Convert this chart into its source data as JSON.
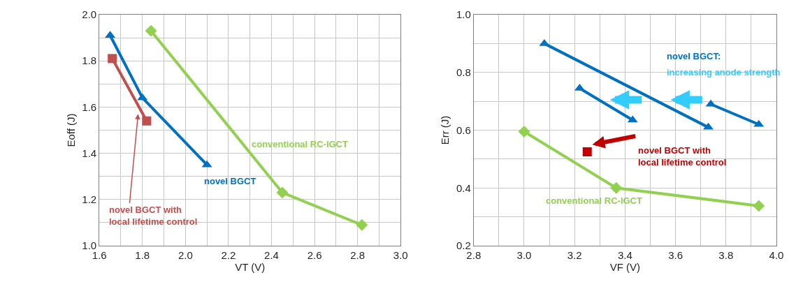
{
  "chart_data": [
    {
      "type": "line",
      "xlabel": "VT (V)",
      "ylabel": "Eoff (J)",
      "xlim": [
        1.6,
        3.0
      ],
      "ylim": [
        1.0,
        2.0
      ],
      "xticks": [
        1.6,
        {
          "value": 1.7,
          "label": null
        },
        1.8,
        {
          "value": 1.9,
          "label": null
        },
        {
          "value": 2.0,
          "label": "2.0"
        },
        {
          "value": 2.1,
          "label": null
        },
        2.2,
        {
          "value": 2.3,
          "label": null
        },
        2.4,
        {
          "value": 2.5,
          "label": null
        },
        2.6,
        {
          "value": 2.7,
          "label": null
        },
        2.8,
        {
          "value": 2.9,
          "label": null
        },
        {
          "value": 3.0,
          "label": "3.0"
        }
      ],
      "yticks": [
        {
          "value": 1.0,
          "label": "1.0"
        },
        {
          "value": 1.1,
          "label": null
        },
        1.2,
        {
          "value": 1.3,
          "label": null
        },
        1.4,
        {
          "value": 1.5,
          "label": null
        },
        1.6,
        {
          "value": 1.7,
          "label": null
        },
        1.8,
        {
          "value": 1.9,
          "label": null
        },
        {
          "value": 2.0,
          "label": "2.0"
        }
      ],
      "grid": true,
      "line_style": "solid",
      "series": [
        {
          "name": "novel BGCT",
          "color": "#0070c0",
          "marker": "triangle",
          "x": [
            1.65,
            1.8,
            2.1
          ],
          "values": [
            1.91,
            1.64,
            1.35
          ]
        },
        {
          "name": "novel BGCT with\nlocal lifetime control",
          "color": "#c0504d",
          "marker": "square",
          "x": [
            1.66,
            1.82
          ],
          "values": [
            1.81,
            1.54
          ]
        },
        {
          "name": "conventional RC-IGCT",
          "color": "#92d050",
          "marker": "diamond",
          "x": [
            1.84,
            2.45,
            2.82
          ],
          "values": [
            1.93,
            1.23,
            1.09
          ]
        }
      ]
    },
    {
      "type": "line",
      "xlabel": "VF (V)",
      "ylabel": "Err (J)",
      "xlim": [
        2.8,
        4.0
      ],
      "ylim": [
        0.2,
        1.0
      ],
      "xticks": [
        2.8,
        {
          "value": 2.9,
          "label": null
        },
        {
          "value": 3.0,
          "label": "3.0"
        },
        {
          "value": 3.1,
          "label": null
        },
        3.2,
        {
          "value": 3.3,
          "label": null
        },
        3.4,
        {
          "value": 3.5,
          "label": null
        },
        3.6,
        {
          "value": 3.7,
          "label": null
        },
        3.8,
        {
          "value": 3.9,
          "label": null
        },
        {
          "value": 4.0,
          "label": "4.0"
        }
      ],
      "yticks": [
        0.2,
        {
          "value": 0.3,
          "label": null
        },
        0.4,
        {
          "value": 0.5,
          "label": null
        },
        0.6,
        {
          "value": 0.7,
          "label": null
        },
        0.8,
        {
          "value": 0.9,
          "label": null
        },
        {
          "value": 1.0,
          "label": "1.0"
        }
      ],
      "grid": true,
      "line_style": "solid",
      "annotations": [
        "increasing anode strength"
      ],
      "series": [
        {
          "name": "novel BGCT:",
          "color": "#0070c0",
          "marker": "triangle",
          "x": [
            3.08,
            3.73
          ],
          "values": [
            0.9,
            0.61
          ]
        },
        {
          "color": "#0070c0",
          "marker": "triangle",
          "x": [
            3.22,
            3.43
          ],
          "values": [
            0.745,
            0.635
          ]
        },
        {
          "color": "#0070c0",
          "marker": "triangle",
          "x": [
            3.74,
            3.93
          ],
          "values": [
            0.69,
            0.62
          ]
        },
        {
          "name": "novel BGCT with\nlocal lifetime control",
          "type": "scatter",
          "color": "#c00000",
          "marker": "square",
          "x": [
            3.25
          ],
          "values": [
            0.525
          ]
        },
        {
          "name": "conventional RC-IGCT",
          "color": "#92d050",
          "marker": "diamond",
          "x": [
            3.0,
            3.365,
            3.93
          ],
          "values": [
            0.595,
            0.4,
            0.338
          ]
        }
      ]
    }
  ]
}
